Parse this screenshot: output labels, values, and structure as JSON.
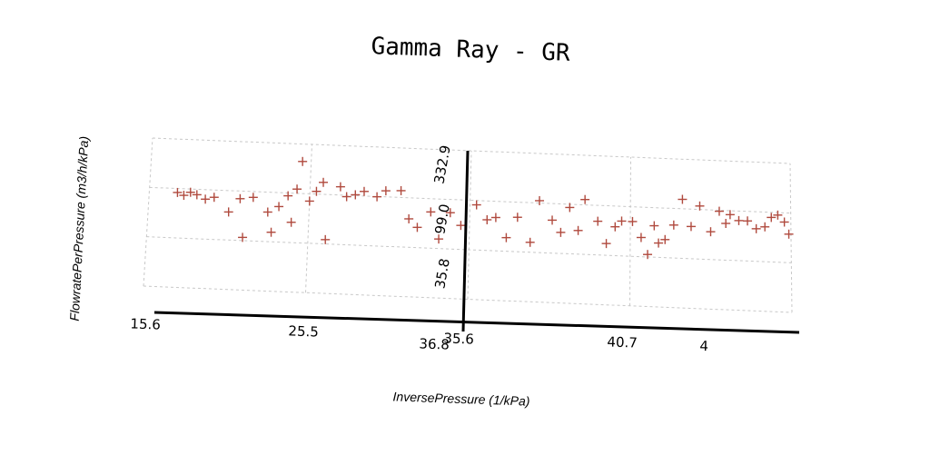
{
  "chart_data": {
    "type": "scatter",
    "title": "Gamma Ray - GR",
    "xlabel": "InversePressure (1/kPa)",
    "ylabel": "FlowratePerPressure (m3/h/kPa)",
    "x_ticks": [
      "15.6",
      "25.5",
      "35.6",
      "40.7"
    ],
    "x_extra_labels": [
      "36.8",
      "4"
    ],
    "y_ticks": [
      "332.9",
      "99.0",
      "35.8"
    ],
    "xlim": [
      15.6,
      45.2
    ],
    "ylim": [
      0.0,
      400.0
    ],
    "grid": true,
    "marker": "+",
    "marker_color": "#b04a3e",
    "series": [
      {
        "points": [
          [
            16.9,
            256
          ],
          [
            17.2,
            249
          ],
          [
            17.5,
            258
          ],
          [
            17.8,
            252
          ],
          [
            18.2,
            241
          ],
          [
            18.6,
            247
          ],
          [
            19.3,
            209
          ],
          [
            19.8,
            246
          ],
          [
            20.0,
            142
          ],
          [
            20.4,
            251
          ],
          [
            21.1,
            213
          ],
          [
            21.3,
            159
          ],
          [
            21.6,
            229
          ],
          [
            22.0,
            259
          ],
          [
            22.2,
            188
          ],
          [
            22.4,
            278
          ],
          [
            22.6,
            353
          ],
          [
            23.0,
            247
          ],
          [
            23.3,
            274
          ],
          [
            23.6,
            299
          ],
          [
            23.8,
            145
          ],
          [
            24.4,
            289
          ],
          [
            24.7,
            263
          ],
          [
            25.1,
            269
          ],
          [
            25.5,
            279
          ],
          [
            26.1,
            266
          ],
          [
            26.5,
            283
          ],
          [
            27.2,
            285
          ],
          [
            27.6,
            210
          ],
          [
            28.0,
            188
          ],
          [
            28.6,
            231
          ],
          [
            29.0,
            159
          ],
          [
            29.5,
            231
          ],
          [
            30.0,
            198
          ],
          [
            30.7,
            255
          ],
          [
            31.2,
            216
          ],
          [
            31.6,
            223
          ],
          [
            32.1,
            170
          ],
          [
            32.6,
            226
          ],
          [
            33.2,
            160
          ],
          [
            33.6,
            273
          ],
          [
            34.2,
            222
          ],
          [
            34.6,
            190
          ],
          [
            35.0,
            258
          ],
          [
            35.4,
            197
          ],
          [
            35.7,
            281
          ],
          [
            36.3,
            224
          ],
          [
            36.7,
            165
          ],
          [
            37.1,
            211
          ],
          [
            37.4,
            227
          ],
          [
            37.9,
            227
          ],
          [
            38.3,
            185
          ],
          [
            38.6,
            140
          ],
          [
            38.9,
            218
          ],
          [
            39.1,
            172
          ],
          [
            39.4,
            182
          ],
          [
            39.8,
            222
          ],
          [
            40.2,
            292
          ],
          [
            40.6,
            220
          ],
          [
            41.0,
            276
          ],
          [
            41.5,
            208
          ],
          [
            41.9,
            264
          ],
          [
            42.4,
            256
          ],
          [
            42.8,
            241
          ],
          [
            43.2,
            241
          ],
          [
            43.6,
            221
          ],
          [
            44.0,
            227
          ],
          [
            44.3,
            253
          ],
          [
            44.6,
            260
          ],
          [
            44.9,
            242
          ],
          [
            45.1,
            210
          ],
          [
            42.2,
            232
          ]
        ]
      }
    ]
  }
}
